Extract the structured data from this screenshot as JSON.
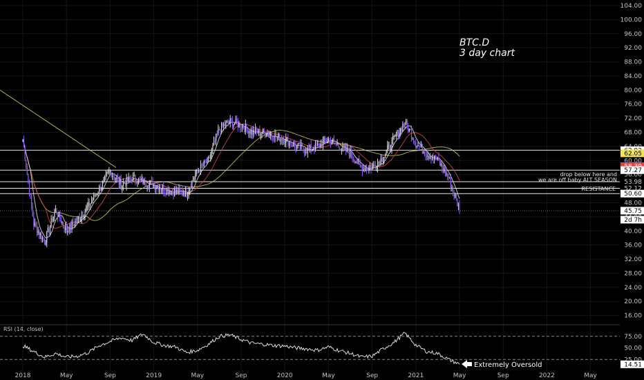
{
  "chart_data": {
    "type": "line",
    "title": "BTC.D",
    "subtitle": "3 day chart",
    "x_ticks": [
      "2018",
      "May",
      "Sep",
      "2019",
      "May",
      "Sep",
      "2020",
      "May",
      "Sep",
      "2021",
      "May",
      "Sep",
      "2022",
      "May"
    ],
    "y_ticks": [
      "104.00",
      "100.00",
      "96.00",
      "92.00",
      "88.00",
      "84.00",
      "80.00",
      "76.00",
      "72.00",
      "68.00",
      "64.00",
      "60.00",
      "56.00",
      "52.00",
      "48.00",
      "44.00",
      "40.00",
      "36.00",
      "32.00",
      "28.00",
      "24.00",
      "20.00",
      "16.00"
    ],
    "ylim": [
      12,
      104
    ],
    "series": [
      {
        "x": [
          "2018-01",
          "2018-02",
          "2018-03",
          "2018-04",
          "2018-05",
          "2018-06",
          "2018-07",
          "2018-08",
          "2018-09",
          "2018-10",
          "2018-11",
          "2018-12",
          "2019-01",
          "2019-02",
          "2019-03",
          "2019-04",
          "2019-05",
          "2019-06",
          "2019-07",
          "2019-08",
          "2019-09",
          "2019-10",
          "2019-11",
          "2019-12",
          "2020-01",
          "2020-02",
          "2020-03",
          "2020-04",
          "2020-05",
          "2020-06",
          "2020-07",
          "2020-08",
          "2020-09",
          "2020-10",
          "2020-11",
          "2020-12",
          "2021-01",
          "2021-02",
          "2021-03",
          "2021-04",
          "2021-05"
        ],
        "values": [
          66,
          42,
          37,
          46,
          40,
          43,
          47,
          52,
          57,
          53,
          55,
          54,
          53,
          52,
          51,
          51,
          57,
          60,
          69,
          71,
          70,
          68,
          68,
          67,
          66,
          64,
          63,
          64,
          66,
          64,
          62,
          58,
          58,
          61,
          66,
          71,
          65,
          62,
          60,
          55,
          46
        ]
      }
    ],
    "horizontal_levels": [
      "62.92",
      "57.27",
      "53.98",
      "52.12",
      "50.60"
    ],
    "price_tags": [
      {
        "label": "62.92",
        "color": "#ffffff",
        "text_color": "#000000"
      },
      {
        "label": "62.05",
        "color": "#f1e35b",
        "text_color": "#000000"
      },
      {
        "label": "58.39",
        "color": "#e0424b",
        "text_color": "#ffffff"
      },
      {
        "label": "57.27",
        "color": "#ffffff",
        "text_color": "#000000"
      },
      {
        "label": "53.98",
        "color": "#000000",
        "text_color": "#d0d0d0"
      },
      {
        "label": "52.12",
        "color": "#000000",
        "text_color": "#d0d0d0"
      },
      {
        "label": "50.60",
        "color": "#ffffff",
        "text_color": "#000000"
      },
      {
        "label": "45.75",
        "color": "#ffffff",
        "text_color": "#000000"
      },
      {
        "label": "2d 7h",
        "color": "#ffffff",
        "text_color": "#000000"
      }
    ],
    "annotations": [
      "drop below here and",
      "we are off baby ALT SEASON",
      "RESISTANCE"
    ],
    "rsi": {
      "label": "RSI (14, close)",
      "y_ticks": [
        "75.00",
        "50.00",
        "25.00"
      ],
      "last_value_label": "14.51",
      "annotation": "Extremely Oversold",
      "values": [
        55,
        42,
        30,
        38,
        30,
        32,
        40,
        55,
        64,
        72,
        66,
        80,
        62,
        55,
        52,
        40,
        45,
        58,
        75,
        78,
        68,
        60,
        58,
        55,
        54,
        50,
        48,
        45,
        52,
        44,
        38,
        30,
        32,
        48,
        62,
        82,
        56,
        42,
        38,
        25,
        14.51
      ]
    },
    "colors": {
      "up_candle": "#d7d7d7",
      "down_candle": "#8b5cf6",
      "ma_yellow": "#c8c25a",
      "ma_red": "#d14b4b",
      "ma_white": "#e6e6e6"
    }
  }
}
